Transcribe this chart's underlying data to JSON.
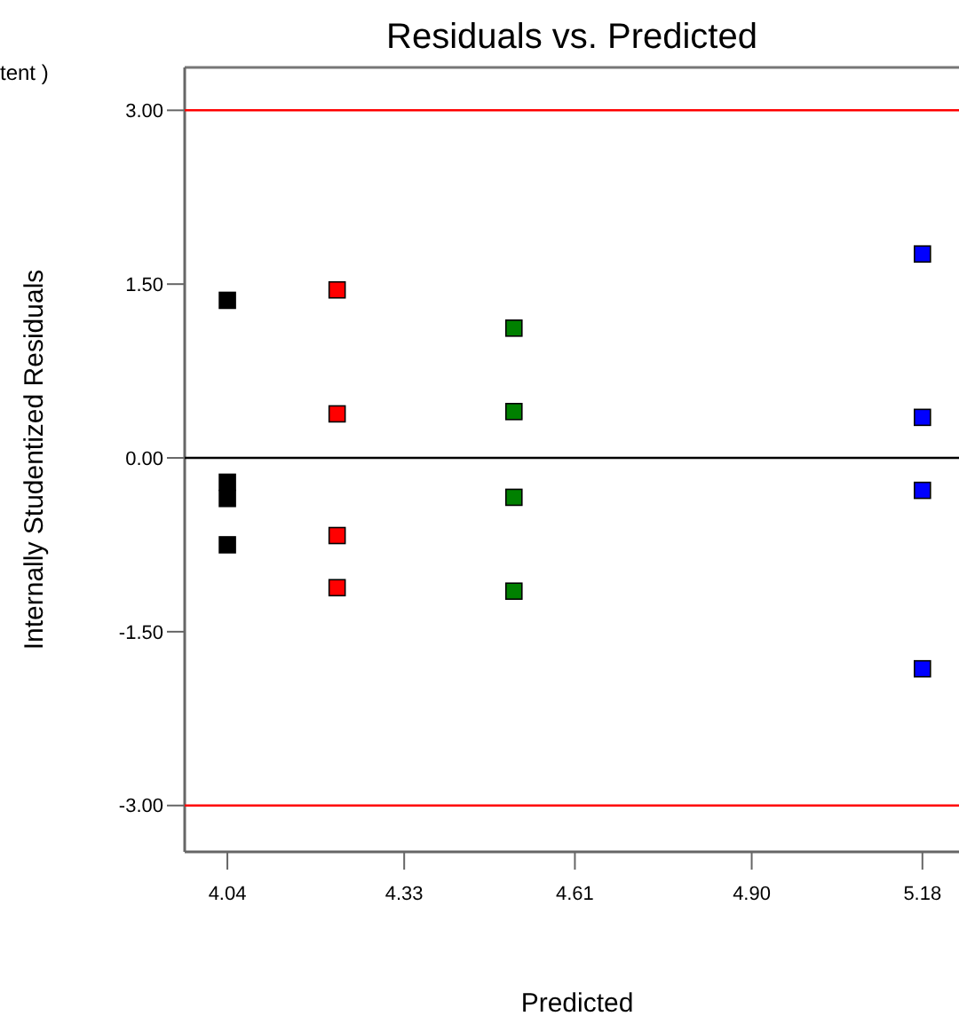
{
  "chart_data": {
    "type": "scatter",
    "title": "Residuals vs. Predicted",
    "xlabel": "Predicted",
    "ylabel": "Internally Studentized Residuals",
    "annotations": [
      "tent )"
    ],
    "xlim": [
      3.97,
      5.24
    ],
    "xticks": [
      {
        "value": 4.04,
        "label": "4.04"
      },
      {
        "value": 4.33,
        "label": "4.33"
      },
      {
        "value": 4.61,
        "label": "4.61"
      },
      {
        "value": 4.9,
        "label": "4.90"
      },
      {
        "value": 5.18,
        "label": "5.18"
      }
    ],
    "ylim": [
      -3.4,
      3.37
    ],
    "yticks": [
      {
        "value": -3,
        "label": "-3.00"
      },
      {
        "value": -1.5,
        "label": "-1.50"
      },
      {
        "value": 0,
        "label": "0.00"
      },
      {
        "value": 1.5,
        "label": "1.50"
      },
      {
        "value": 3,
        "label": "3.00"
      }
    ],
    "grid": false,
    "marker": "square",
    "ref_lines": [
      {
        "axis": "y",
        "value": 3,
        "color": "#ff0000"
      },
      {
        "axis": "y",
        "value": 0,
        "color": "#000000"
      },
      {
        "axis": "y",
        "value": -3,
        "color": "#ff0000"
      }
    ],
    "series": [
      {
        "color": "#000000",
        "x": [
          4.04,
          4.04,
          4.04,
          4.04
        ],
        "values": [
          1.36,
          -0.21,
          -0.35,
          -0.75
        ]
      },
      {
        "color": "#ff0000",
        "x": [
          4.22,
          4.22,
          4.22,
          4.22
        ],
        "values": [
          1.45,
          0.38,
          -0.67,
          -1.12
        ]
      },
      {
        "color": "#008000",
        "x": [
          4.51,
          4.51,
          4.51,
          4.51
        ],
        "values": [
          1.12,
          0.4,
          -0.34,
          -1.15
        ]
      },
      {
        "color": "#0000ff",
        "x": [
          5.18,
          5.18,
          5.18,
          5.18
        ],
        "values": [
          1.76,
          0.35,
          -0.28,
          -1.82
        ]
      }
    ]
  }
}
